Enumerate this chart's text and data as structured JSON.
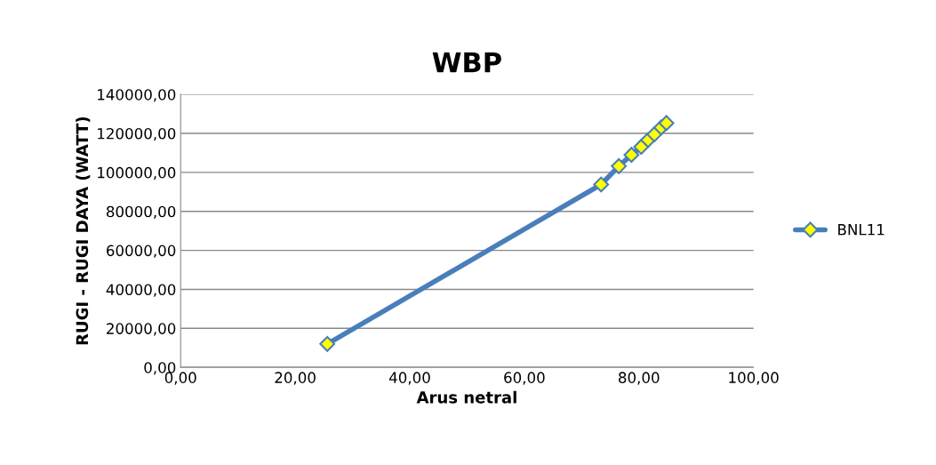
{
  "chart_data": {
    "type": "line",
    "title": "WBP",
    "xlabel": "Arus netral",
    "ylabel": "RUGI - RUGI DAYA (WATT)",
    "series": [
      {
        "name": "BNL11",
        "color": "#4a7ebb",
        "x": [
          25.6,
          73.4,
          76.5,
          78.7,
          80.4,
          81.6,
          82.7,
          83.9,
          84.8
        ],
        "values": [
          12000,
          93800,
          103200,
          109000,
          113100,
          116600,
          119500,
          123000,
          125300
        ]
      }
    ],
    "xlim": [
      0,
      100
    ],
    "xticks": [
      {
        "value": 0,
        "label": "0,00"
      },
      {
        "value": 20,
        "label": "20,00"
      },
      {
        "value": 40,
        "label": "40,00"
      },
      {
        "value": 60,
        "label": "60,00"
      },
      {
        "value": 80,
        "label": "80,00"
      },
      {
        "value": 100,
        "label": "100,00"
      }
    ],
    "ylim": [
      0,
      140000
    ],
    "yticks": [
      {
        "value": 0,
        "label": "0,00"
      },
      {
        "value": 20000,
        "label": "20000,00"
      },
      {
        "value": 40000,
        "label": "40000,00"
      },
      {
        "value": 60000,
        "label": "60000,00"
      },
      {
        "value": 80000,
        "label": "80000,00"
      },
      {
        "value": 100000,
        "label": "100000,00"
      },
      {
        "value": 120000,
        "label": "120000,00"
      },
      {
        "value": 140000,
        "label": "140000,00"
      }
    ],
    "grid": "y",
    "legend": "right",
    "marker": "diamond",
    "line_style": "solid"
  }
}
